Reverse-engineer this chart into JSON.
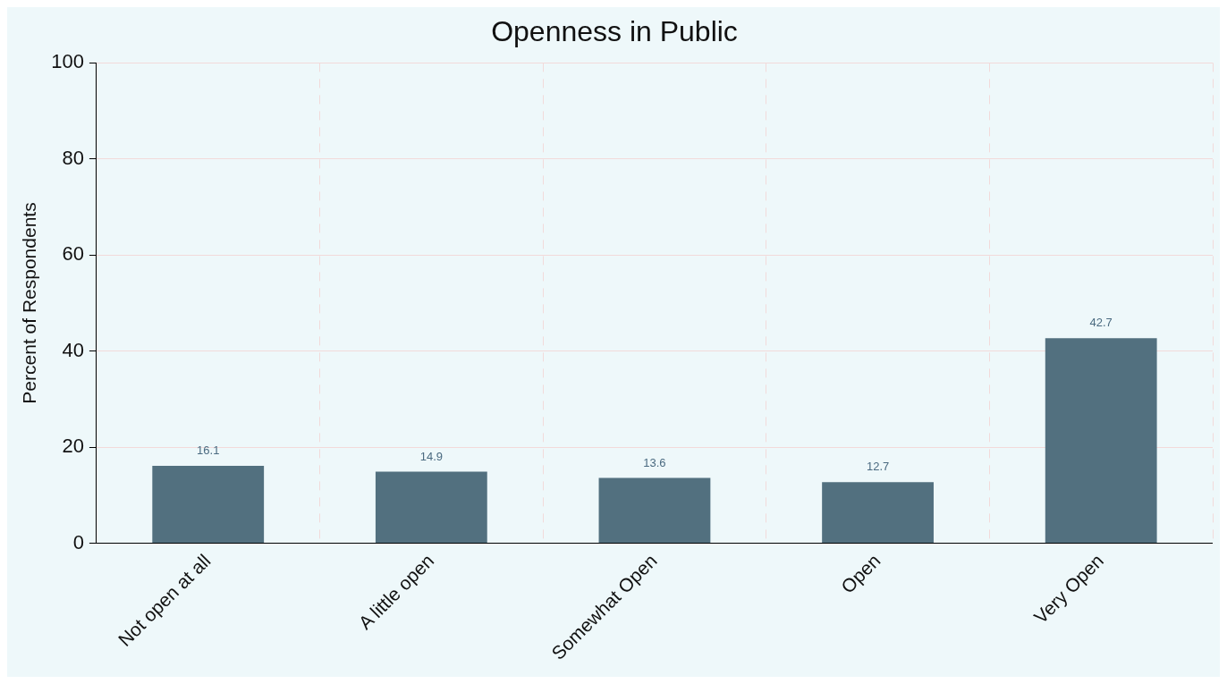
{
  "chart_data": {
    "type": "bar",
    "title": "Openness in Public",
    "ylabel": "Percent of Respondents",
    "categories": [
      "Not open at all",
      "A little open",
      "Somewhat Open",
      "Open",
      "Very Open"
    ],
    "values": [
      16.1,
      14.9,
      13.6,
      12.7,
      42.7
    ],
    "color": "#52707f",
    "ylim": [
      0,
      100
    ],
    "yticks": [
      0,
      20,
      40,
      60,
      80,
      100
    ],
    "grid": true,
    "data_labels": true
  }
}
